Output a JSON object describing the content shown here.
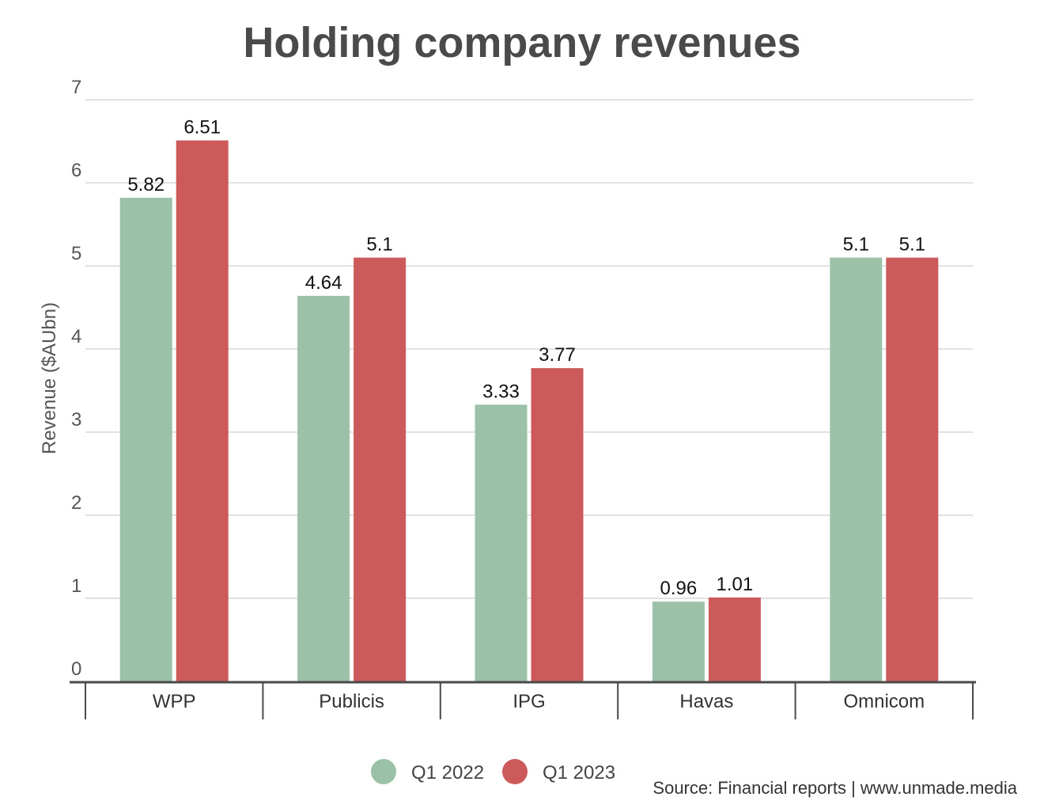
{
  "chart_data": {
    "type": "bar",
    "title": "Holding company revenues",
    "ylabel": "Revenue ($AUbn)",
    "xlabel": "",
    "categories": [
      "WPP",
      "Publicis",
      "IPG",
      "Havas",
      "Omnicom"
    ],
    "series": [
      {
        "name": "Q1 2022",
        "color": "#9bc2a8",
        "values": [
          5.82,
          4.64,
          3.33,
          0.96,
          5.1
        ],
        "labels": [
          "5.82",
          "4.64",
          "3.33",
          "0.96",
          "5.1"
        ]
      },
      {
        "name": "Q1 2023",
        "color": "#cd5a5a",
        "values": [
          6.51,
          5.1,
          3.77,
          1.01,
          5.1
        ],
        "labels": [
          "6.51",
          "5.1",
          "3.77",
          "1.01",
          "5.1"
        ]
      }
    ],
    "ylim": [
      0,
      7
    ],
    "yticks": [
      "0",
      "1",
      "2",
      "3",
      "4",
      "5",
      "6",
      "7"
    ],
    "grid": true,
    "legend": "bottom-center",
    "source": "Source: Financial reports | www.unmade.media"
  }
}
